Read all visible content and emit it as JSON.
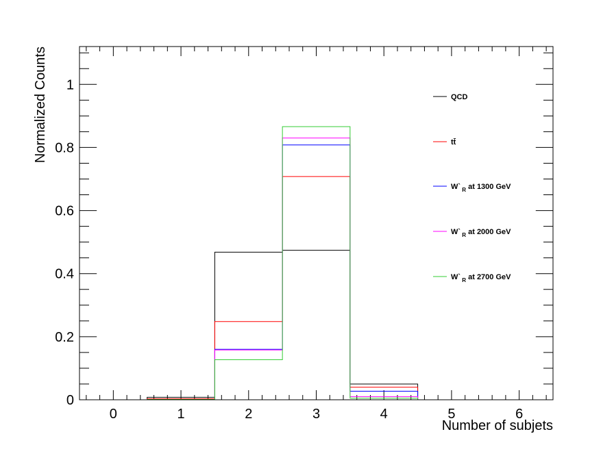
{
  "chart_data": {
    "type": "histogram",
    "title": "",
    "xlabel": "Number of subjets",
    "ylabel": "Normalized Counts",
    "xlim": [
      -0.5,
      6.5
    ],
    "ylim": [
      0,
      1.12
    ],
    "xticks": [
      0,
      1,
      2,
      3,
      4,
      5,
      6
    ],
    "xtick_labels": [
      "0",
      "1",
      "2",
      "3",
      "4",
      "5",
      "6"
    ],
    "yticks": [
      0,
      0.2,
      0.4,
      0.6,
      0.8,
      1
    ],
    "ytick_labels": [
      "0",
      "0.2",
      "0.4",
      "0.6",
      "0.8",
      "1"
    ],
    "bin_edges": [
      -0.5,
      0.5,
      1.5,
      2.5,
      3.5,
      4.5,
      5.5,
      6.5
    ],
    "grid": false,
    "legend_position": "right",
    "series": [
      {
        "name": "QCD",
        "color": "#000000",
        "values": [
          0,
          0.008,
          0.468,
          0.474,
          0.05,
          0,
          0
        ]
      },
      {
        "name": "tt̄",
        "color": "#ff0000",
        "values": [
          0,
          0.003,
          0.248,
          0.708,
          0.04,
          0,
          0
        ]
      },
      {
        "name": "W'_R at 1300 GeV",
        "color": "#0000ff",
        "values": [
          0,
          0.001,
          0.16,
          0.808,
          0.027,
          0,
          0
        ]
      },
      {
        "name": "W'_R at 2000 GeV",
        "color": "#ff00ff",
        "values": [
          0,
          0.001,
          0.158,
          0.83,
          0.01,
          0,
          0
        ]
      },
      {
        "name": "W'_R at 2700 GeV",
        "color": "#33cc33",
        "values": [
          0,
          0.001,
          0.127,
          0.866,
          0.005,
          0,
          0
        ]
      }
    ],
    "legend": [
      {
        "main": "QCD",
        "sub": "",
        "suffix": "",
        "color": "#000000"
      },
      {
        "main": "tt̄",
        "sub": "",
        "suffix": "",
        "color": "#ff0000"
      },
      {
        "main": "W`",
        "sub": "R",
        "suffix": " at 1300 GeV",
        "color": "#0000ff"
      },
      {
        "main": "W`",
        "sub": "R",
        "suffix": " at 2000 GeV",
        "color": "#ff00ff"
      },
      {
        "main": "W`",
        "sub": "R",
        "suffix": " at 2700 GeV",
        "color": "#33cc33"
      }
    ]
  }
}
